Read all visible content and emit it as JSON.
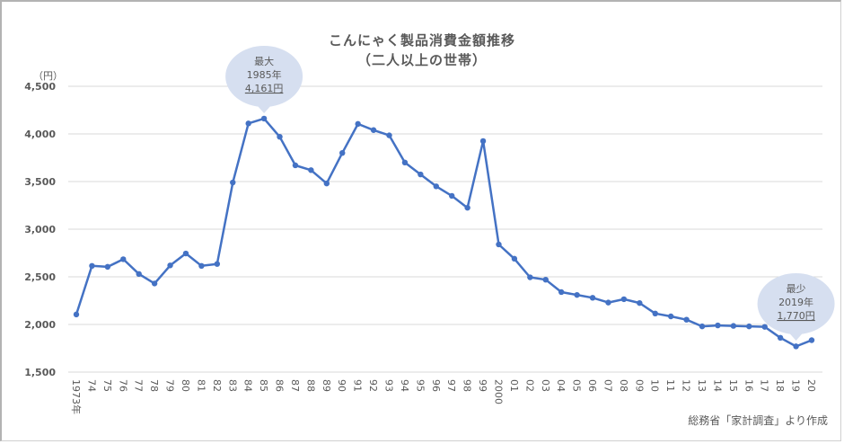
{
  "chart": {
    "title_line1": "こんにゃく製品消費金額推移",
    "title_line2": "（二人以上の世帯）",
    "unit_label": "（円）",
    "source": "総務省「家計調査」より作成",
    "line_color": "#4472c4",
    "callout_color": "#d6dff0",
    "max_callout": {
      "label": "最大",
      "year": "1985年",
      "value": "4,161円"
    },
    "min_callout": {
      "label": "最少",
      "year": "2019年",
      "value": "1,770円"
    }
  },
  "chart_data": {
    "type": "line",
    "title": "こんにゃく製品消費金額推移（二人以上の世帯）",
    "xlabel": "",
    "ylabel": "（円）",
    "ylim": [
      1500,
      4500
    ],
    "yticks": [
      1500,
      2000,
      2500,
      3000,
      3500,
      4000,
      4500
    ],
    "ytick_labels": [
      "1,500",
      "2,000",
      "2,500",
      "3,000",
      "3,500",
      "4,000",
      "4,500"
    ],
    "grid": true,
    "legend": null,
    "categories": [
      "1973年",
      "74",
      "75",
      "76",
      "77",
      "78",
      "79",
      "80",
      "81",
      "82",
      "83",
      "84",
      "85",
      "86",
      "87",
      "88",
      "89",
      "90",
      "91",
      "92",
      "93",
      "94",
      "95",
      "96",
      "97",
      "98",
      "99",
      "2000",
      "01",
      "02",
      "03",
      "04",
      "05",
      "06",
      "07",
      "08",
      "09",
      "10",
      "11",
      "12",
      "13",
      "14",
      "15",
      "16",
      "17",
      "18",
      "19",
      "20"
    ],
    "series": [
      {
        "name": "こんにゃく製品消費金額",
        "values": [
          2105,
          2615,
          2605,
          2685,
          2530,
          2430,
          2620,
          2745,
          2615,
          2635,
          3490,
          4110,
          4161,
          3970,
          3670,
          3620,
          3480,
          3800,
          4105,
          4040,
          3985,
          3700,
          3575,
          3450,
          3350,
          3225,
          3925,
          2840,
          2690,
          2495,
          2470,
          2340,
          2310,
          2280,
          2230,
          2265,
          2225,
          2115,
          2085,
          2050,
          1980,
          1990,
          1985,
          1980,
          1975,
          1860,
          1770,
          1835
        ]
      }
    ],
    "annotations": [
      {
        "x": "85",
        "text": "最大 1985年 4,161円"
      },
      {
        "x": "19",
        "text": "最少 2019年 1,770円"
      }
    ]
  }
}
